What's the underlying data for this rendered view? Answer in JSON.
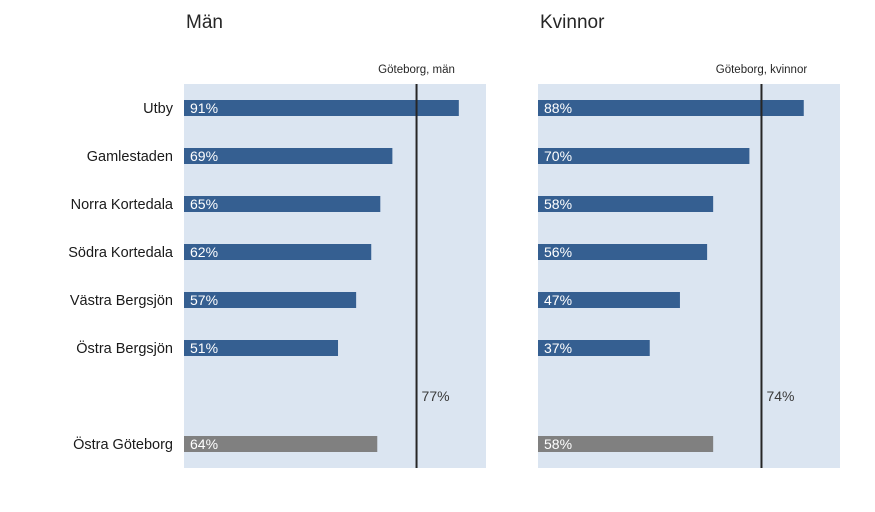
{
  "chart_data": [
    {
      "type": "bar",
      "orientation": "horizontal",
      "title": "Män",
      "categories": [
        "Utby",
        "Gamlestaden",
        "Norra Kortedala",
        "Södra Kortedala",
        "Västra Bergsjön",
        "Östra Bergsjön",
        "Östra Göteborg"
      ],
      "values": [
        91,
        69,
        65,
        62,
        57,
        51,
        64
      ],
      "value_labels": [
        "91%",
        "69%",
        "65%",
        "62%",
        "57%",
        "51%",
        "64%"
      ],
      "bar_colors": [
        "#355f91",
        "#355f91",
        "#355f91",
        "#355f91",
        "#355f91",
        "#355f91",
        "#808080"
      ],
      "reference_line": {
        "label": "Göteborg, män",
        "value": 77,
        "value_label": "77%"
      },
      "xlim": [
        0,
        100
      ],
      "grid": false
    },
    {
      "type": "bar",
      "orientation": "horizontal",
      "title": "Kvinnor",
      "categories": [
        "Utby",
        "Gamlestaden",
        "Norra Kortedala",
        "Södra Kortedala",
        "Västra Bergsjön",
        "Östra Bergsjön",
        "Östra Göteborg"
      ],
      "values": [
        88,
        70,
        58,
        56,
        47,
        37,
        58
      ],
      "value_labels": [
        "88%",
        "70%",
        "58%",
        "56%",
        "47%",
        "37%",
        "58%"
      ],
      "bar_colors": [
        "#355f91",
        "#355f91",
        "#355f91",
        "#355f91",
        "#355f91",
        "#355f91",
        "#808080"
      ],
      "reference_line": {
        "label": "Göteborg, kvinnor",
        "value": 74,
        "value_label": "74%"
      },
      "xlim": [
        0,
        100
      ],
      "grid": false
    }
  ],
  "colors": {
    "plot_background": "#dbe5f1",
    "district_bar": "#355f91",
    "total_bar": "#808080",
    "reference_line": "#262626"
  }
}
